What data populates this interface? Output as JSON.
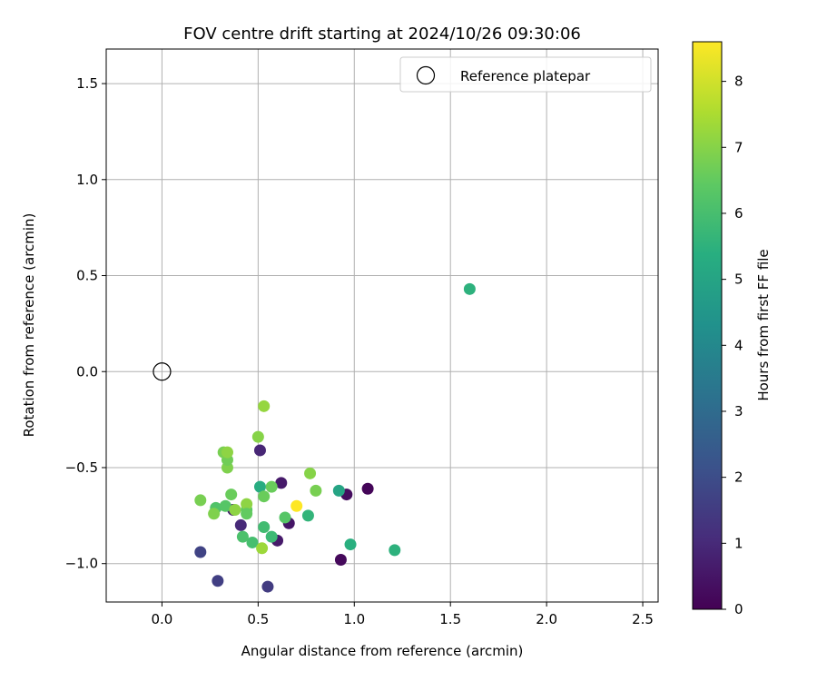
{
  "chart_data": {
    "type": "scatter",
    "title": "FOV centre drift starting at 2024/10/26 09:30:06",
    "xlabel": "Angular distance from reference (arcmin)",
    "ylabel": "Rotation from reference (arcmin)",
    "xlim": [
      -0.29,
      2.58
    ],
    "ylim": [
      -1.2,
      1.68
    ],
    "x_ticks": [
      {
        "value": 0.0,
        "label": "0.0"
      },
      {
        "value": 0.5,
        "label": "0.5"
      },
      {
        "value": 1.0,
        "label": "1.0"
      },
      {
        "value": 1.5,
        "label": "1.5"
      },
      {
        "value": 2.0,
        "label": "2.0"
      },
      {
        "value": 2.5,
        "label": "2.5"
      }
    ],
    "y_ticks": [
      {
        "value": -1.0,
        "label": "−1.0"
      },
      {
        "value": -0.5,
        "label": "−0.5"
      },
      {
        "value": 0.0,
        "label": "0.0"
      },
      {
        "value": 0.5,
        "label": "0.5"
      },
      {
        "value": 1.0,
        "label": "1.0"
      },
      {
        "value": 1.5,
        "label": "1.5"
      }
    ],
    "grid": true,
    "legend": {
      "position": "top-right",
      "entries": [
        {
          "label": "Reference platepar",
          "marker": "open-circle"
        }
      ]
    },
    "reference_point": {
      "x": 0.0,
      "y": 0.0
    },
    "colorbar": {
      "label": "Hours from first FF file",
      "colormap": "viridis",
      "range": [
        0,
        8.6
      ],
      "ticks": [
        {
          "value": 0,
          "label": "0"
        },
        {
          "value": 1,
          "label": "1"
        },
        {
          "value": 2,
          "label": "2"
        },
        {
          "value": 3,
          "label": "3"
        },
        {
          "value": 4,
          "label": "4"
        },
        {
          "value": 5,
          "label": "5"
        },
        {
          "value": 6,
          "label": "6"
        },
        {
          "value": 7,
          "label": "7"
        },
        {
          "value": 8,
          "label": "8"
        }
      ]
    },
    "points": [
      {
        "x": 1.07,
        "y": -0.61,
        "hours": 0.1
      },
      {
        "x": 0.96,
        "y": -0.64,
        "hours": 0.3
      },
      {
        "x": 0.93,
        "y": -0.98,
        "hours": 0.2
      },
      {
        "x": 0.66,
        "y": -0.79,
        "hours": 0.5
      },
      {
        "x": 0.62,
        "y": -0.58,
        "hours": 0.6
      },
      {
        "x": 0.6,
        "y": -0.88,
        "hours": 0.6
      },
      {
        "x": 0.51,
        "y": -0.41,
        "hours": 0.9
      },
      {
        "x": 0.41,
        "y": -0.8,
        "hours": 1.0
      },
      {
        "x": 0.37,
        "y": -0.72,
        "hours": 0.8
      },
      {
        "x": 0.2,
        "y": -0.94,
        "hours": 1.7
      },
      {
        "x": 0.29,
        "y": -1.09,
        "hours": 1.6
      },
      {
        "x": 0.55,
        "y": -1.12,
        "hours": 1.5
      },
      {
        "x": 1.6,
        "y": 0.43,
        "hours": 5.5
      },
      {
        "x": 0.92,
        "y": -0.62,
        "hours": 5.0
      },
      {
        "x": 0.98,
        "y": -0.9,
        "hours": 5.4
      },
      {
        "x": 1.21,
        "y": -0.93,
        "hours": 5.5
      },
      {
        "x": 0.76,
        "y": -0.75,
        "hours": 5.6
      },
      {
        "x": 0.51,
        "y": -0.6,
        "hours": 5.3
      },
      {
        "x": 0.57,
        "y": -0.86,
        "hours": 5.8
      },
      {
        "x": 0.47,
        "y": -0.89,
        "hours": 6.0
      },
      {
        "x": 0.42,
        "y": -0.86,
        "hours": 6.1
      },
      {
        "x": 0.53,
        "y": -0.81,
        "hours": 5.9
      },
      {
        "x": 0.28,
        "y": -0.71,
        "hours": 6.2
      },
      {
        "x": 0.33,
        "y": -0.7,
        "hours": 6.3
      },
      {
        "x": 0.44,
        "y": -0.72,
        "hours": 6.4
      },
      {
        "x": 0.64,
        "y": -0.76,
        "hours": 6.3
      },
      {
        "x": 0.57,
        "y": -0.6,
        "hours": 6.6
      },
      {
        "x": 0.53,
        "y": -0.65,
        "hours": 6.6
      },
      {
        "x": 0.8,
        "y": -0.62,
        "hours": 6.8
      },
      {
        "x": 0.77,
        "y": -0.53,
        "hours": 7.0
      },
      {
        "x": 0.36,
        "y": -0.64,
        "hours": 6.6
      },
      {
        "x": 0.34,
        "y": -0.5,
        "hours": 6.9
      },
      {
        "x": 0.34,
        "y": -0.46,
        "hours": 6.7
      },
      {
        "x": 0.32,
        "y": -0.42,
        "hours": 6.8
      },
      {
        "x": 0.34,
        "y": -0.42,
        "hours": 7.1
      },
      {
        "x": 0.5,
        "y": -0.34,
        "hours": 7.0
      },
      {
        "x": 0.53,
        "y": -0.18,
        "hours": 7.2
      },
      {
        "x": 0.2,
        "y": -0.67,
        "hours": 6.8
      },
      {
        "x": 0.27,
        "y": -0.74,
        "hours": 6.9
      },
      {
        "x": 0.38,
        "y": -0.72,
        "hours": 7.1
      },
      {
        "x": 0.44,
        "y": -0.69,
        "hours": 7.1
      },
      {
        "x": 0.44,
        "y": -0.74,
        "hours": 6.5
      },
      {
        "x": 0.52,
        "y": -0.92,
        "hours": 7.3
      },
      {
        "x": 0.7,
        "y": -0.7,
        "hours": 8.6
      }
    ]
  }
}
